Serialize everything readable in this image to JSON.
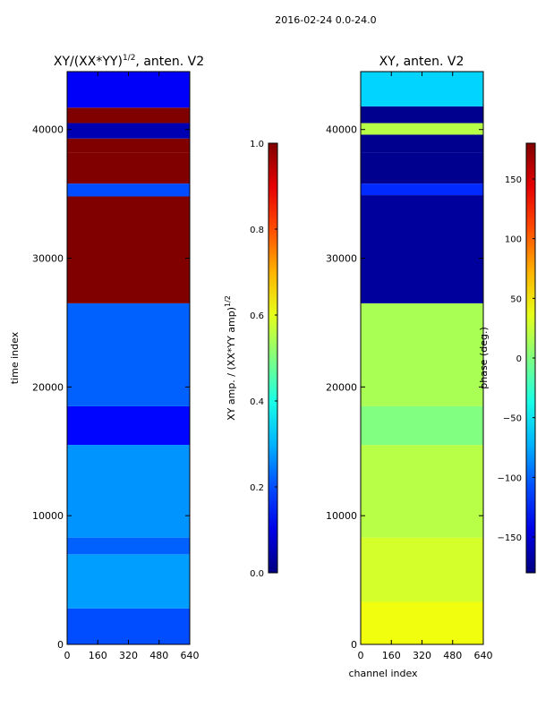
{
  "suptitle": "2016-02-24 0.0-24.0",
  "colormap": "jet",
  "chart_data": [
    {
      "type": "heatmap",
      "title": "XY/(XX*YY)^(1/2), anten. V2",
      "title_parts": {
        "main": "XY/(XX*YY)",
        "exponent": "1/2",
        "suffix": ", anten. V2"
      },
      "xlabel": "",
      "ylabel": "time index",
      "xlim": [
        0,
        640
      ],
      "ylim": [
        0,
        44500
      ],
      "xticks": [
        0,
        160,
        320,
        480,
        640
      ],
      "yticks": [
        0,
        10000,
        20000,
        30000,
        40000
      ],
      "colorbar": {
        "label": "XY amp. / (XX*YY amp)^(1/2)",
        "label_parts": {
          "main": "XY amp. / (XX*YY amp)",
          "exponent": "1/2"
        },
        "range": [
          0.0,
          1.0
        ],
        "ticks": [
          0.0,
          0.2,
          0.4,
          0.6,
          0.8,
          1.0
        ],
        "tick_labels": [
          "0.0",
          "0.2",
          "0.4",
          "0.6",
          "0.8",
          "1.0"
        ]
      },
      "bands": [
        {
          "y0": 0,
          "y1": 2800,
          "value": 0.2
        },
        {
          "y0": 2800,
          "y1": 7000,
          "value": 0.28
        },
        {
          "y0": 7000,
          "y1": 8300,
          "value": 0.22
        },
        {
          "y0": 8300,
          "y1": 15500,
          "value": 0.27
        },
        {
          "y0": 15500,
          "y1": 18500,
          "value": 0.13
        },
        {
          "y0": 18500,
          "y1": 26500,
          "value": 0.22
        },
        {
          "y0": 26500,
          "y1": 34800,
          "value": 1.0
        },
        {
          "y0": 34800,
          "y1": 35800,
          "value": 0.2
        },
        {
          "y0": 35800,
          "y1": 38200,
          "value": 1.0
        },
        {
          "y0": 38200,
          "y1": 39300,
          "value": 1.0
        },
        {
          "y0": 39300,
          "y1": 40500,
          "value": 0.05
        },
        {
          "y0": 40500,
          "y1": 41700,
          "value": 1.0
        },
        {
          "y0": 41700,
          "y1": 44500,
          "value": 0.12
        }
      ]
    },
    {
      "type": "heatmap",
      "title": "XY, anten. V2",
      "xlabel": "channel index",
      "ylabel": "",
      "xlim": [
        0,
        640
      ],
      "ylim": [
        0,
        44500
      ],
      "xticks": [
        0,
        160,
        320,
        480,
        640
      ],
      "yticks": [
        0,
        10000,
        20000,
        30000,
        40000
      ],
      "colorbar": {
        "label": "phase (deg.)",
        "range": [
          -180,
          180
        ],
        "ticks": [
          -150,
          -100,
          -50,
          0,
          50,
          100,
          150
        ],
        "tick_labels": [
          "−150",
          "−100",
          "−50",
          "0",
          "50",
          "100",
          "150"
        ]
      },
      "bands": [
        {
          "y0": 0,
          "y1": 3300,
          "value": 40
        },
        {
          "y0": 3300,
          "y1": 8300,
          "value": 30
        },
        {
          "y0": 8300,
          "y1": 15500,
          "value": 20
        },
        {
          "y0": 15500,
          "y1": 18500,
          "value": 0
        },
        {
          "y0": 18500,
          "y1": 26500,
          "value": 15
        },
        {
          "y0": 26500,
          "y1": 34900,
          "value": -170
        },
        {
          "y0": 34900,
          "y1": 35800,
          "value": -120
        },
        {
          "y0": 35800,
          "y1": 38200,
          "value": -175
        },
        {
          "y0": 38200,
          "y1": 39600,
          "value": -175
        },
        {
          "y0": 39600,
          "y1": 40500,
          "value": 20
        },
        {
          "y0": 40500,
          "y1": 41800,
          "value": -175
        },
        {
          "y0": 41800,
          "y1": 44500,
          "value": -60
        }
      ]
    }
  ]
}
